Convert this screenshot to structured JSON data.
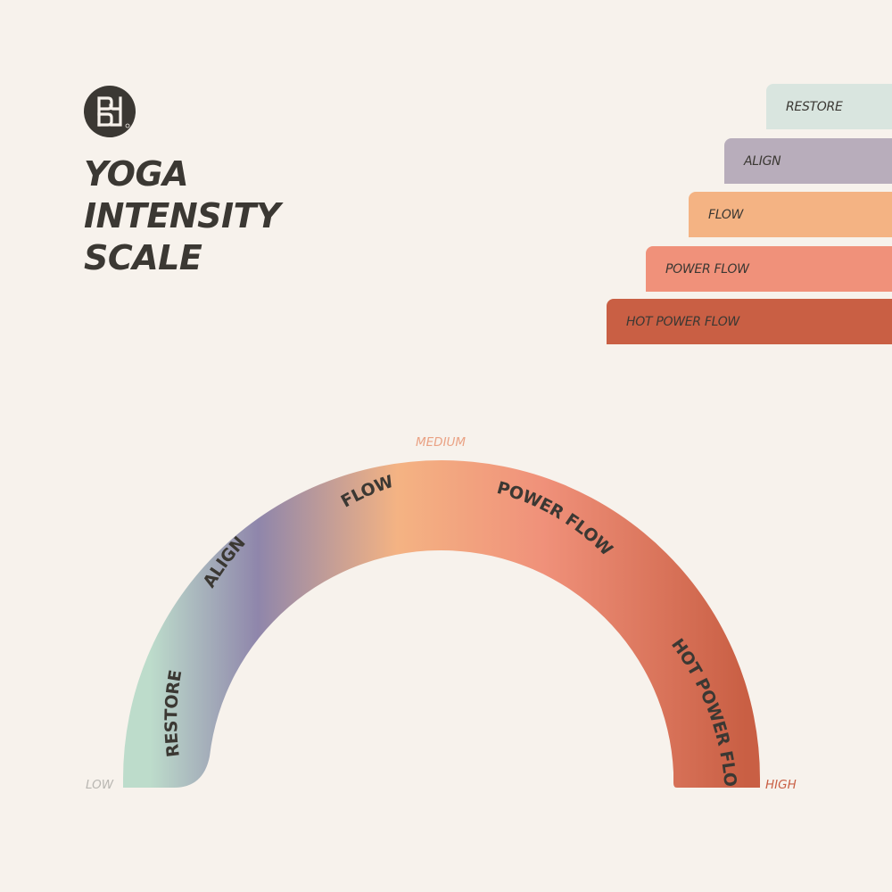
{
  "title": {
    "line1": "YOGA",
    "line2": "INTENSITY",
    "line3": "SCALE"
  },
  "legend": [
    {
      "label": "RESTORE",
      "color": "#d9e5df"
    },
    {
      "label": "ALIGN",
      "color": "#b8adbb"
    },
    {
      "label": "FLOW",
      "color": "#f4b383"
    },
    {
      "label": "POWER FLOW",
      "color": "#f0917a"
    },
    {
      "label": "HOT POWER FLOW",
      "color": "#c95f44"
    }
  ],
  "scale": {
    "low_label": "LOW",
    "medium_label": "MEDIUM",
    "high_label": "HIGH",
    "segments": [
      {
        "label": "RESTORE",
        "color": "#bddccb"
      },
      {
        "label": "ALIGN",
        "color": "#8f86ab"
      },
      {
        "label": "FLOW",
        "color": "#f4b383"
      },
      {
        "label": "POWER FLOW",
        "color": "#f0917a"
      },
      {
        "label": "HOT POWER FLOW",
        "color": "#c95f44"
      }
    ],
    "colors": {
      "low": "#b9b7b2",
      "medium": "#eaa284",
      "high": "#c95f44"
    }
  },
  "colors": {
    "background": "#f7f2ec",
    "text": "#3b3833"
  }
}
